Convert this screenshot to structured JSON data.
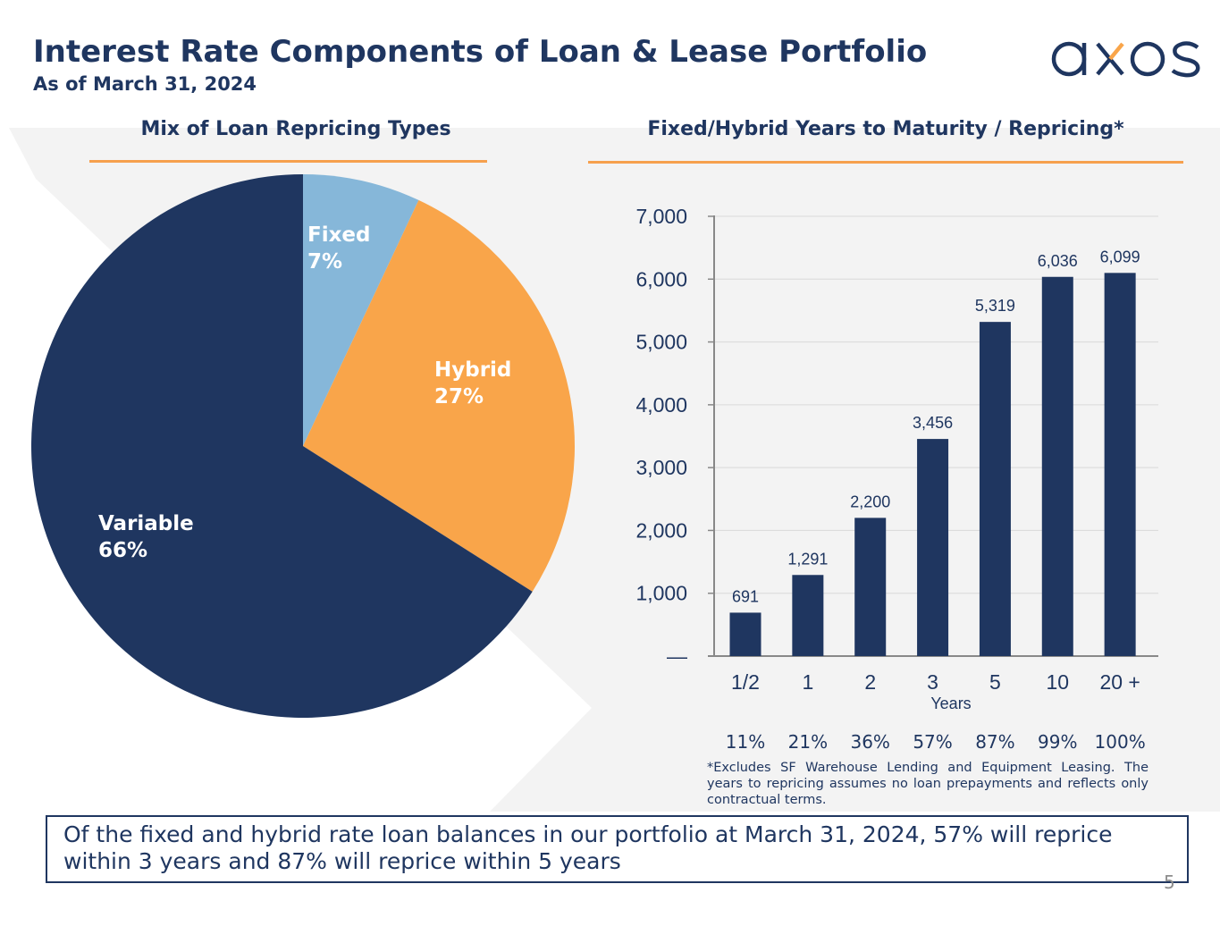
{
  "header": {
    "title": "Interest Rate Components of Loan & Lease Portfolio",
    "subtitle": "As of March 31, 2024",
    "logo_text": "axos"
  },
  "colors": {
    "navy": "#1f3660",
    "orange": "#f9a54a",
    "light_blue": "#86b7d9",
    "rule_orange": "#f6a04d",
    "background_shape": "#f2f2f2"
  },
  "chart_data": [
    {
      "type": "pie",
      "title": "Mix of Loan Repricing Types",
      "slices": [
        {
          "name": "Fixed",
          "label": "7%",
          "value": 7,
          "color": "#86b7d9"
        },
        {
          "name": "Hybrid",
          "label": "27%",
          "value": 27,
          "color": "#f9a54a"
        },
        {
          "name": "Variable",
          "label": "66%",
          "value": 66,
          "color": "#1f3660"
        }
      ]
    },
    {
      "type": "bar",
      "title": "Fixed/Hybrid Years to Maturity / Repricing",
      "title_mark": "*",
      "categories": [
        "1/2",
        "1",
        "2",
        "3",
        "5",
        "10",
        "20 +"
      ],
      "values": [
        691,
        1291,
        2200,
        3456,
        5319,
        6036,
        6099
      ],
      "value_labels": [
        "691",
        "1,291",
        "2,200",
        "3,456",
        "5,319",
        "6,036",
        "6,099"
      ],
      "xlabel": "Years",
      "ylabel": "",
      "ylim": [
        0,
        7000
      ],
      "yticks": [
        0,
        1000,
        2000,
        3000,
        4000,
        5000,
        6000,
        7000
      ],
      "ytick_labels": [
        "—",
        "1,000",
        "2,000",
        "3,000",
        "4,000",
        "5,000",
        "6,000",
        "7,000"
      ],
      "grid": true,
      "cumulative_percent": [
        "11%",
        "21%",
        "36%",
        "57%",
        "87%",
        "99%",
        "100%"
      ]
    }
  ],
  "footnote": "*Excludes SF Warehouse Lending and Equipment Leasing. The years to repricing assumes no loan prepayments and reflects only contractual terms.",
  "summary": "Of the fixed and hybrid rate loan balances in our portfolio at March 31, 2024, 57% will reprice within 3 years and 87% will reprice within 5 years",
  "page_number": "5"
}
